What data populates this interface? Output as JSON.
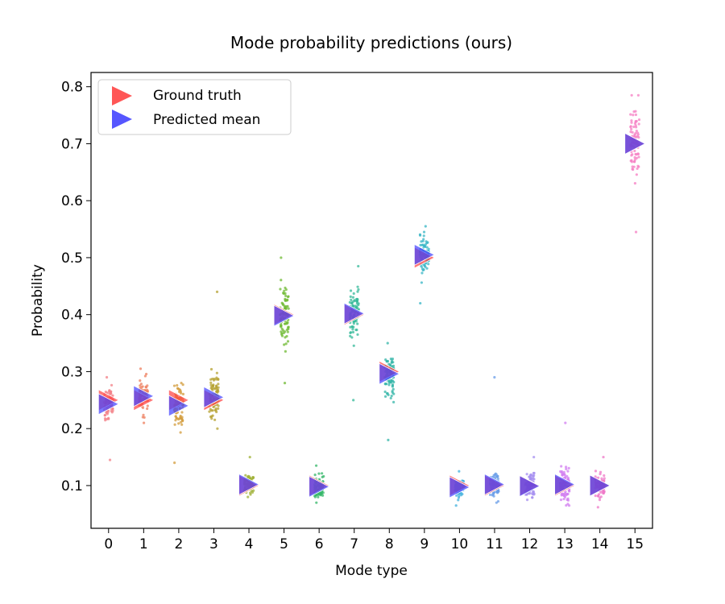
{
  "chart_data": {
    "type": "scatter",
    "title": "Mode probability predictions (ours)",
    "xlabel": "Mode type",
    "ylabel": "Probability",
    "categories": [
      "0",
      "1",
      "2",
      "3",
      "4",
      "5",
      "6",
      "7",
      "8",
      "9",
      "10",
      "11",
      "12",
      "13",
      "14",
      "15"
    ],
    "xlim": [
      -0.5,
      15.5
    ],
    "ylim": [
      0.025,
      0.825
    ],
    "yticks": [
      0.1,
      0.2,
      0.3,
      0.4,
      0.5,
      0.6,
      0.7,
      0.8
    ],
    "ytick_labels": [
      "0.1",
      "0.2",
      "0.3",
      "0.4",
      "0.5",
      "0.6",
      "0.7",
      "0.8"
    ],
    "series": [
      {
        "name": "Ground truth",
        "color": "#ff4444",
        "marker": "right-triangle",
        "values": [
          0.25,
          0.25,
          0.25,
          0.25,
          0.1,
          0.4,
          0.1,
          0.4,
          0.3,
          0.5,
          0.1,
          0.1,
          0.1,
          0.1,
          0.1,
          0.7
        ]
      },
      {
        "name": "Predicted mean",
        "color": "#4444ff",
        "marker": "right-triangle",
        "values": [
          0.243,
          0.257,
          0.24,
          0.255,
          0.102,
          0.398,
          0.098,
          0.402,
          0.296,
          0.505,
          0.097,
          0.102,
          0.099,
          0.102,
          0.1,
          0.7
        ]
      }
    ],
    "samples": {
      "per_mode_colors": [
        "#f37f86",
        "#ee7f5f",
        "#d39c3c",
        "#b5a231",
        "#9fb035",
        "#6fba33",
        "#35b76a",
        "#36b99a",
        "#34b5a8",
        "#38b5c6",
        "#43b1de",
        "#6a9ee8",
        "#a58ff0",
        "#d27ef0",
        "#ef79c8",
        "#f57dc3"
      ],
      "per_mode_center": [
        0.243,
        0.257,
        0.24,
        0.255,
        0.102,
        0.398,
        0.098,
        0.402,
        0.296,
        0.505,
        0.097,
        0.102,
        0.099,
        0.102,
        0.1,
        0.7
      ],
      "per_mode_spread": [
        0.018,
        0.02,
        0.025,
        0.03,
        0.012,
        0.035,
        0.012,
        0.032,
        0.025,
        0.022,
        0.01,
        0.018,
        0.015,
        0.022,
        0.015,
        0.04
      ],
      "per_mode_min": [
        0.145,
        0.21,
        0.14,
        0.2,
        0.08,
        0.28,
        0.07,
        0.25,
        0.18,
        0.42,
        0.065,
        0.07,
        0.075,
        0.065,
        0.062,
        0.545
      ],
      "per_mode_max": [
        0.29,
        0.305,
        0.28,
        0.44,
        0.15,
        0.5,
        0.135,
        0.485,
        0.35,
        0.555,
        0.125,
        0.29,
        0.15,
        0.21,
        0.15,
        0.785
      ],
      "count_per_mode": 90
    },
    "legend": {
      "position": "top-left",
      "entries": [
        "Ground truth",
        "Predicted mean"
      ]
    },
    "grid": false
  }
}
